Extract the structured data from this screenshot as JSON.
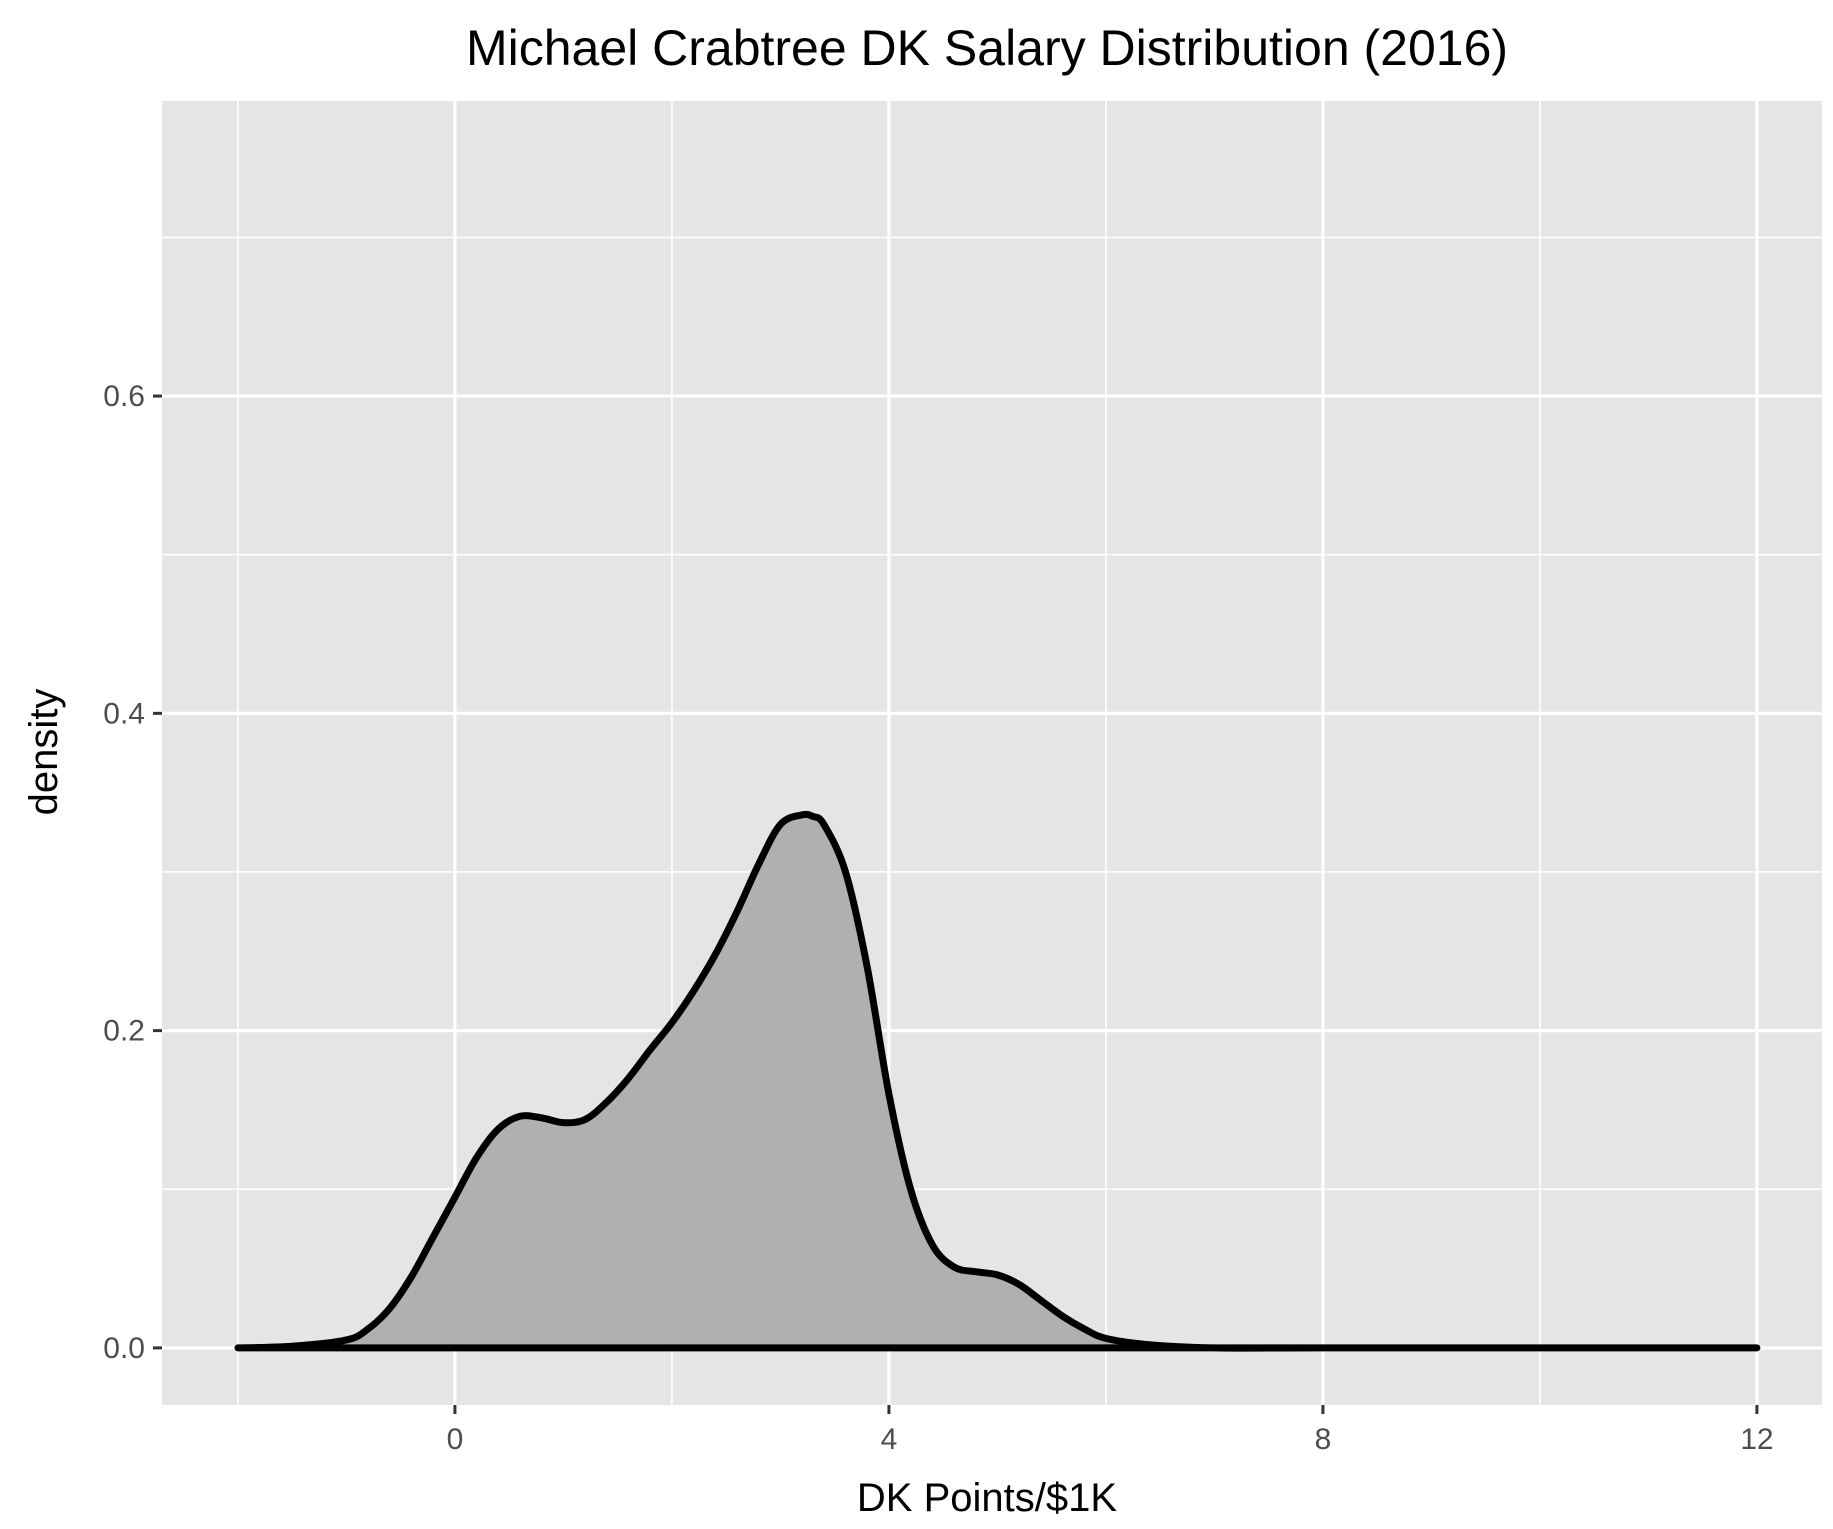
{
  "chart_data": {
    "type": "area",
    "title": "Michael Crabtree DK Salary Distribution (2016)",
    "xlabel": "DK Points/$1K",
    "ylabel": "density",
    "xlim": [
      -2.7,
      12.6
    ],
    "ylim": [
      -0.036,
      0.786
    ],
    "x_ticks": [
      0,
      4,
      8,
      12
    ],
    "x_tick_labels": [
      "0",
      "4",
      "8",
      "12"
    ],
    "y_ticks": [
      0.0,
      0.2,
      0.4,
      0.6
    ],
    "y_tick_labels": [
      "0.0",
      "0.2",
      "0.4",
      "0.6"
    ],
    "grid": true,
    "legend": "none",
    "colors": {
      "panel": "#e5e5e5",
      "grid": "#ffffff",
      "fill": "#b0b0b0",
      "line": "#000000"
    },
    "series": [
      {
        "x": [
          -2.0,
          -1.5,
          -1.0,
          -0.8,
          -0.6,
          -0.4,
          -0.2,
          0.0,
          0.2,
          0.4,
          0.6,
          0.8,
          1.0,
          1.2,
          1.4,
          1.6,
          1.8,
          2.0,
          2.2,
          2.4,
          2.6,
          2.8,
          3.0,
          3.2,
          3.3,
          3.4,
          3.6,
          3.8,
          4.0,
          4.2,
          4.4,
          4.6,
          4.8,
          5.0,
          5.2,
          5.4,
          5.6,
          5.8,
          6.0,
          6.4,
          7.0,
          8.0,
          10.0,
          12.0
        ],
        "y": [
          0.0,
          0.001,
          0.005,
          0.012,
          0.025,
          0.045,
          0.07,
          0.095,
          0.12,
          0.138,
          0.146,
          0.145,
          0.142,
          0.144,
          0.155,
          0.17,
          0.188,
          0.205,
          0.225,
          0.248,
          0.275,
          0.305,
          0.33,
          0.336,
          0.335,
          0.33,
          0.3,
          0.24,
          0.16,
          0.1,
          0.065,
          0.051,
          0.048,
          0.046,
          0.04,
          0.03,
          0.02,
          0.012,
          0.006,
          0.002,
          0.0,
          0.0,
          0.0,
          0.0
        ]
      }
    ]
  }
}
